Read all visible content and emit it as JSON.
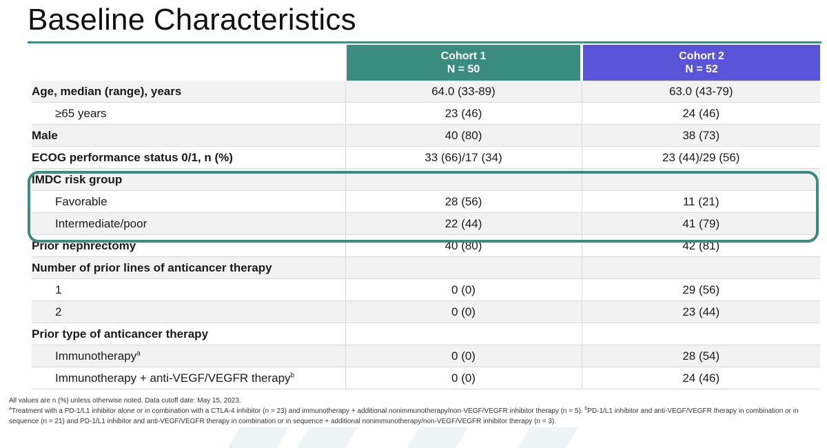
{
  "title": "Baseline Characteristics",
  "columns": {
    "cohort1_name": "Cohort 1",
    "cohort1_n": "N = 50",
    "cohort2_name": "Cohort 2",
    "cohort2_n": "N = 52"
  },
  "rows": [
    {
      "label": "Age, median (range), years",
      "c1": "64.0 (33-89)",
      "c2": "63.0 (43-79)"
    },
    {
      "label": "≥65 years",
      "c1": "23 (46)",
      "c2": "24 (46)"
    },
    {
      "label": "Male",
      "c1": "40 (80)",
      "c2": "38 (73)"
    },
    {
      "label": "ECOG performance status 0/1, n (%)",
      "c1": "33 (66)/17 (34)",
      "c2": "23 (44)/29 (56)"
    },
    {
      "label": "IMDC risk group",
      "c1": "",
      "c2": ""
    },
    {
      "label": "Favorable",
      "c1": "28 (56)",
      "c2": "11 (21)"
    },
    {
      "label": "Intermediate/poor",
      "c1": "22 (44)",
      "c2": "41 (79)"
    },
    {
      "label": "Prior nephrectomy",
      "c1": "40 (80)",
      "c2": "42 (81)"
    },
    {
      "label": "Number of prior lines of anticancer therapy",
      "c1": "",
      "c2": ""
    },
    {
      "label": "1",
      "c1": "0 (0)",
      "c2": "29 (56)"
    },
    {
      "label": "2",
      "c1": "0 (0)",
      "c2": "23 (44)"
    },
    {
      "label": "Prior type of anticancer therapy",
      "c1": "",
      "c2": ""
    },
    {
      "label": "Immunotherapy",
      "sup": "a",
      "c1": "0 (0)",
      "c2": "28 (54)"
    },
    {
      "label": "Immunotherapy + anti-VEGF/VEGFR therapy",
      "sup": "b",
      "c1": "0 (0)",
      "c2": "24 (46)"
    }
  ],
  "footnotes": {
    "line1": "All values are n (%) unless otherwise noted. Data cutoff date: May 15, 2023.",
    "a_marker": "a",
    "a_text": "Treatment with a PD-1/L1 inhibitor alone or in combination with a CTLA-4 inhibitor (n = 23) and immunotherapy + additional nonimmunotherapy/non-VEGF/VEGFR inhibitor therapy (n = 5). ",
    "b_marker": "b",
    "b_text": "PD-1/L1 inhibitor and anti-VEGF/VEGFR therapy in combination or in sequence (n = 21) and PD-1/L1 inhibitor and anti-VEGF/VEGFR therapy in combination or in sequence + additional nonimmunotherapy/non-VEGF/VEGFR inhibitor therapy (n = 3)."
  },
  "colors": {
    "cohort1": "#3a8c80",
    "cohort2": "#5a54d9",
    "highlight_border": "#3a8c80"
  }
}
